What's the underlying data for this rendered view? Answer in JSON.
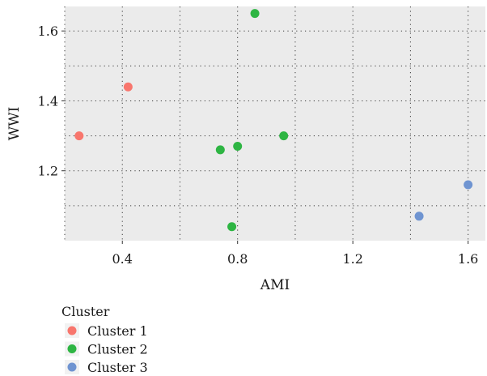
{
  "chart_data": {
    "type": "scatter",
    "title": "",
    "xlabel": "AMI",
    "ylabel": "WWI",
    "xlim": [
      0.2,
      1.66
    ],
    "ylim": [
      1.0,
      1.67
    ],
    "x_ticks": [
      0.4,
      0.8,
      1.2,
      1.6
    ],
    "x_tick_labels": [
      "0.4",
      "0.8",
      "1.2",
      "1.6"
    ],
    "y_ticks": [
      1.2,
      1.4,
      1.6
    ],
    "y_tick_labels": [
      "1.2",
      "1.4",
      "1.6"
    ],
    "grid": true,
    "grid_style": "dotted",
    "panel_background": "#EBEBEB",
    "legend": {
      "title": "Cluster",
      "position": "bottom-left"
    },
    "series": [
      {
        "name": "Cluster 1",
        "color": "#F8766D",
        "points": [
          {
            "x": 0.25,
            "y": 1.3
          },
          {
            "x": 0.42,
            "y": 1.44
          }
        ]
      },
      {
        "name": "Cluster 2",
        "color": "#2EB543",
        "points": [
          {
            "x": 0.86,
            "y": 1.65
          },
          {
            "x": 0.96,
            "y": 1.3
          },
          {
            "x": 0.8,
            "y": 1.27
          },
          {
            "x": 0.74,
            "y": 1.26
          },
          {
            "x": 0.78,
            "y": 1.04
          }
        ]
      },
      {
        "name": "Cluster 3",
        "color": "#6F94D1",
        "points": [
          {
            "x": 1.6,
            "y": 1.16
          },
          {
            "x": 1.43,
            "y": 1.07
          }
        ]
      }
    ]
  }
}
